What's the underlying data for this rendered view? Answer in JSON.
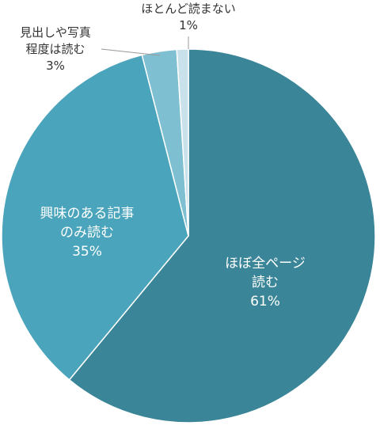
{
  "chart_data": {
    "type": "pie",
    "categories": [
      "ほぼ全ページ読む",
      "興味のある記事のみ読む",
      "見出しや写真程度は読む",
      "ほとんど読まない"
    ],
    "values": [
      61,
      35,
      3,
      1
    ],
    "unit": "%",
    "start_angle_deg": 0,
    "direction": "clockwise",
    "colors": [
      "#3a8597",
      "#4aa4bb",
      "#7fbfd2",
      "#c9e1ea"
    ],
    "labels": [
      {
        "lines": [
          "ほぼ全ページ",
          "読む"
        ],
        "value": "61%",
        "placement": "inside",
        "color": "#ffffff"
      },
      {
        "lines": [
          "興味のある記事",
          "のみ読む"
        ],
        "value": "35%",
        "placement": "inside",
        "color": "#ffffff"
      },
      {
        "lines": [
          "見出しや写真",
          "程度は読む"
        ],
        "value": "3%",
        "placement": "outside-left",
        "color": "#333333"
      },
      {
        "lines": [
          "ほとんど読まない"
        ],
        "value": "1%",
        "placement": "outside-top",
        "color": "#333333"
      }
    ]
  }
}
